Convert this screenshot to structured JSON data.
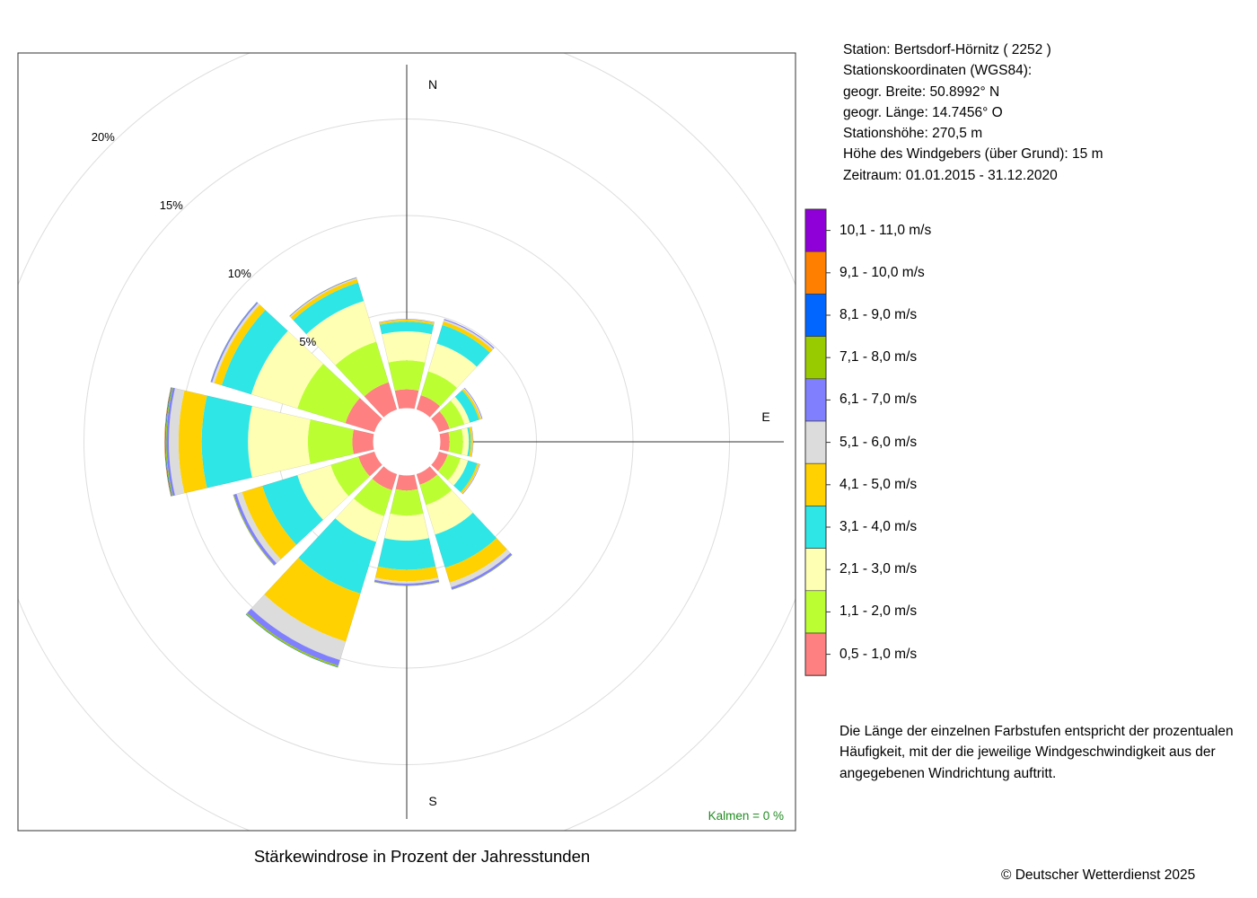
{
  "station": {
    "line1": "Station:  Bertsdorf-Hörnitz  ( 2252 )",
    "line2": "Stationskoordinaten (WGS84):",
    "line3": "geogr. Breite: 50.8992° N",
    "line4": "geogr. Länge: 14.7456° O",
    "line5": "Stationshöhe: 270,5 m",
    "line6": "Höhe des Windgebers (über Grund): 15 m",
    "line7": "Zeitraum: 01.01.2015 - 31.12.2020"
  },
  "note": {
    "line1": "Die Länge der einzelnen Farbstufen entspricht der prozentualen",
    "line2": "Häufigkeit, mit der die jeweilige Windgeschwindigkeit aus der",
    "line3": "angegebenen Windrichtung auftritt."
  },
  "footer": {
    "title": "Stärkewindrose in Prozent der Jahresstunden",
    "copyright": "© Deutscher Wetterdienst  2025"
  },
  "chart_data": {
    "type": "wind-rose",
    "title": "Stärkewindrose in Prozent der Jahresstunden",
    "directions_deg": [
      0,
      30,
      60,
      90,
      120,
      150,
      180,
      210,
      240,
      270,
      300,
      330
    ],
    "compass_labels": [
      "N",
      "E",
      "S"
    ],
    "rings_percent": [
      5,
      10,
      15,
      20
    ],
    "ring_labels": [
      "5%",
      "10%",
      "15%",
      "20%"
    ],
    "calm_label": "Kalmen  =  0 %",
    "legend_order_top_to_bottom": [
      "10,1 - 11,0 m/s",
      "9,1 - 10,0 m/s",
      "8,1 - 9,0 m/s",
      "7,1 - 8,0 m/s",
      "6,1 - 7,0 m/s",
      "5,1 - 6,0 m/s",
      "4,1 - 5,0 m/s",
      "3,1 - 4,0 m/s",
      "2,1 - 3,0 m/s",
      "1,1 - 2,0 m/s",
      "0,5 - 1,0 m/s"
    ],
    "series": [
      {
        "name": "0,5 - 1,0 m/s",
        "color": "#ff8080",
        "values": [
          1.0,
          0.8,
          0.6,
          0.5,
          0.5,
          0.6,
          0.8,
          0.9,
          0.9,
          1.1,
          1.6,
          1.5
        ]
      },
      {
        "name": "1,1 - 2,0 m/s",
        "color": "#bbff33",
        "values": [
          1.5,
          1.3,
          0.8,
          0.7,
          0.7,
          1.1,
          1.3,
          1.4,
          1.5,
          2.3,
          2.6,
          2.2
        ]
      },
      {
        "name": "2,1 - 3,0 m/s",
        "color": "#ffffb3",
        "values": [
          1.5,
          1.5,
          0.3,
          0.3,
          0.4,
          1.6,
          1.3,
          1.4,
          1.8,
          3.1,
          2.5,
          2.2
        ]
      },
      {
        "name": "3,1 - 4,0 m/s",
        "color": "#2ee6e6",
        "values": [
          0.5,
          1.0,
          0.5,
          0.1,
          0.5,
          1.8,
          1.5,
          2.8,
          1.9,
          2.4,
          1.6,
          1.0
        ]
      },
      {
        "name": "4,1 - 5,0 m/s",
        "color": "#ffd100",
        "values": [
          0.1,
          0.2,
          0.1,
          0.1,
          0.1,
          0.8,
          0.6,
          2.6,
          1.1,
          1.2,
          0.4,
          0.2
        ]
      },
      {
        "name": "5,1 - 6,0 m/s",
        "color": "#dcdcdc",
        "values": [
          0.02,
          0.08,
          0.05,
          0.02,
          0.03,
          0.25,
          0.12,
          1.0,
          0.3,
          0.5,
          0.12,
          0.05
        ]
      },
      {
        "name": "6,1 - 7,0 m/s",
        "color": "#8080ff",
        "values": [
          0.02,
          0.05,
          0.03,
          0.01,
          0.02,
          0.12,
          0.1,
          0.3,
          0.15,
          0.12,
          0.06,
          0.03
        ]
      },
      {
        "name": "7,1 - 8,0 m/s",
        "color": "#99cc00",
        "values": [
          0,
          0,
          0,
          0,
          0,
          0.02,
          0.02,
          0.08,
          0.03,
          0.05,
          0.01,
          0.01
        ]
      },
      {
        "name": "8,1 - 9,0 m/s",
        "color": "#0066ff",
        "values": [
          0,
          0,
          0,
          0,
          0,
          0,
          0,
          0.02,
          0,
          0.03,
          0.01,
          0
        ]
      },
      {
        "name": "9,1 - 10,0 m/s",
        "color": "#ff8000",
        "values": [
          0,
          0,
          0,
          0,
          0,
          0,
          0,
          0,
          0,
          0.02,
          0,
          0
        ]
      },
      {
        "name": "10,1 - 11,0 m/s",
        "color": "#8f00d9",
        "values": [
          0,
          0,
          0,
          0,
          0,
          0,
          0,
          0,
          0,
          0,
          0,
          0
        ]
      }
    ]
  }
}
